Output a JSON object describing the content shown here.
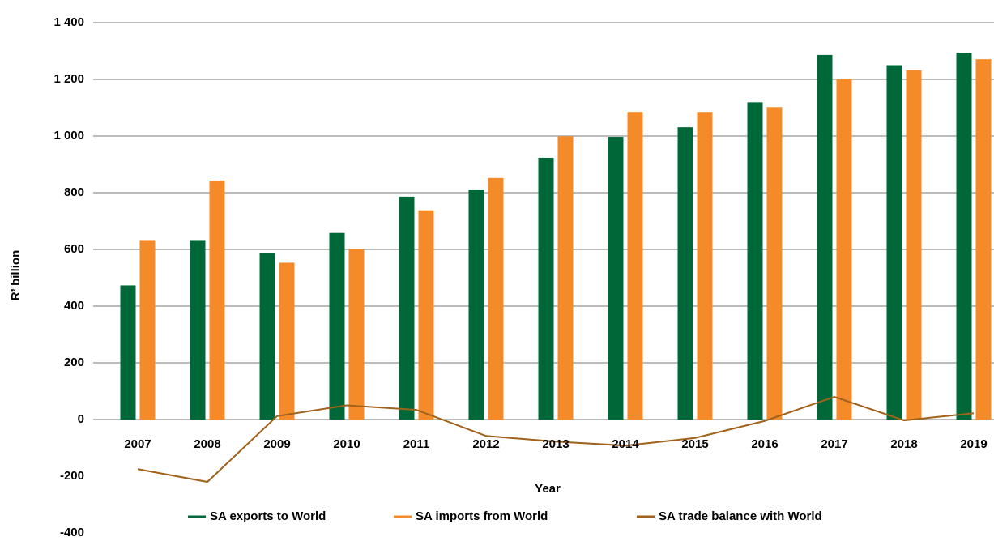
{
  "chart_data": {
    "type": "bar",
    "x_label": "Year",
    "y_label": "R’ billion",
    "categories": [
      "2007",
      "2008",
      "2009",
      "2010",
      "2011",
      "2012",
      "2013",
      "2014",
      "2015",
      "2016",
      "2017",
      "2018",
      "2019"
    ],
    "series": [
      {
        "name": "SA exports to World",
        "color": "#006838",
        "kind": "bar",
        "values": [
          473,
          633,
          588,
          658,
          786,
          811,
          923,
          997,
          1031,
          1119,
          1286,
          1250,
          1294
        ]
      },
      {
        "name": "SA imports from World",
        "color": "#f58a29",
        "kind": "bar",
        "values": [
          633,
          843,
          553,
          601,
          738,
          852,
          999,
          1085,
          1085,
          1102,
          1200,
          1232,
          1271
        ]
      },
      {
        "name": "SA trade balance with World",
        "color": "#a0611a",
        "kind": "line",
        "values": [
          -175,
          -220,
          12,
          50,
          34,
          -58,
          -78,
          -92,
          -65,
          -5,
          80,
          -3,
          22
        ]
      }
    ],
    "ylim": [
      -400,
      1400
    ],
    "yticks": [
      -400,
      -200,
      0,
      200,
      400,
      600,
      800,
      {
        "value": 1000,
        "label": "1 000"
      },
      {
        "value": 1200,
        "label": "1 200"
      },
      {
        "value": 1400,
        "label": "1 400"
      }
    ],
    "grid": true
  }
}
